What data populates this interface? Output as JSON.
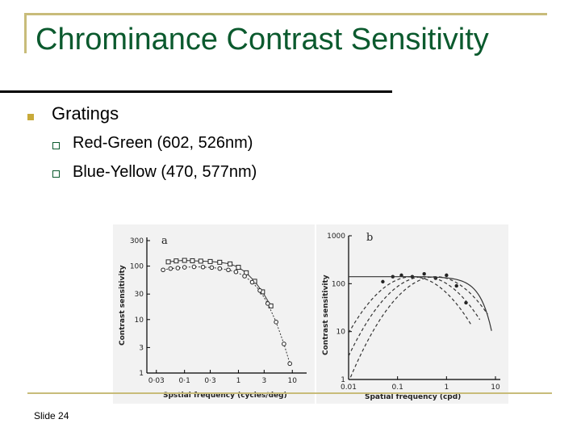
{
  "slide": {
    "title": "Chrominance Contrast Sensitivity",
    "bullet": "Gratings",
    "sub_bullets": [
      "Red-Green (602, 526nm)",
      "Blue-Yellow (470, 577nm)"
    ],
    "footer": "Slide 24"
  },
  "colors": {
    "title": "#0b5a2e",
    "accent": "#c8bc7a",
    "bullet": "#c8aa3a"
  },
  "chart_data": [
    {
      "type": "scatter",
      "panel_label": "a",
      "xlabel": "Spstial frequency (cycles/deg)",
      "ylabel": "Contrast sensitivity",
      "x_scale": "log",
      "y_scale": "log",
      "x_ticks": [
        "0·03",
        "0·1",
        "0·3",
        "1",
        "3",
        "10"
      ],
      "x_tick_values": [
        0.03,
        0.1,
        0.3,
        1,
        3,
        10
      ],
      "y_ticks": [
        "1",
        "3",
        "10",
        "30",
        "100",
        "300"
      ],
      "y_tick_values": [
        1,
        3,
        10,
        30,
        100,
        300
      ],
      "xlim": [
        0.02,
        15
      ],
      "ylim": [
        1,
        300
      ],
      "series": [
        {
          "marker": "square",
          "x": [
            0.05,
            0.07,
            0.1,
            0.14,
            0.2,
            0.3,
            0.45,
            0.7,
            1.0,
            1.4,
            2.0,
            2.8,
            4.0
          ],
          "y": [
            120,
            125,
            128,
            126,
            124,
            122,
            118,
            110,
            95,
            75,
            52,
            33,
            18
          ]
        },
        {
          "marker": "circle",
          "x": [
            0.04,
            0.055,
            0.075,
            0.1,
            0.15,
            0.22,
            0.32,
            0.45,
            0.65,
            0.9,
            1.3,
            1.8,
            2.5,
            3.5,
            5,
            7,
            9
          ],
          "y": [
            85,
            90,
            92,
            95,
            97,
            96,
            94,
            90,
            85,
            78,
            65,
            50,
            35,
            20,
            9,
            3.5,
            1.5
          ]
        }
      ]
    },
    {
      "type": "scatter",
      "panel_label": "b",
      "xlabel": "Spatial frequency (cpd)",
      "ylabel": "Contrast sensitivity",
      "x_scale": "log",
      "y_scale": "log",
      "x_ticks": [
        "0.01",
        "0.1",
        "1",
        "10"
      ],
      "x_tick_values": [
        0.01,
        0.1,
        1,
        10
      ],
      "y_ticks": [
        "1",
        "10",
        "100",
        "1000"
      ],
      "y_tick_values": [
        1,
        10,
        100,
        1000
      ],
      "xlim": [
        0.01,
        10
      ],
      "ylim": [
        1,
        1000
      ],
      "series": [
        {
          "marker": "dot",
          "x": [
            0.05,
            0.08,
            0.12,
            0.2,
            0.35,
            0.6,
            1.0,
            1.6,
            2.5
          ],
          "y": [
            110,
            140,
            150,
            140,
            160,
            130,
            150,
            90,
            40
          ]
        }
      ]
    }
  ]
}
